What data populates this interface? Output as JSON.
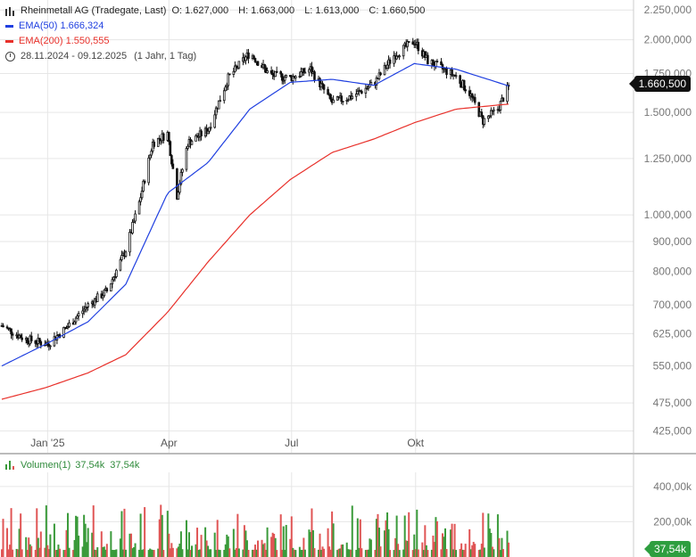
{
  "header": {
    "instrument": "Rheinmetall AG (Tradegate, Last)",
    "ohlc": {
      "o": "O: 1.627,000",
      "h": "H: 1.663,000",
      "l": "L: 1.613,000",
      "c": "C: 1.660,500"
    },
    "ema50": "EMA(50)  1.666,324",
    "ema200": "EMA(200)  1.550,555",
    "range": "28.11.2024 - 09.12.2025",
    "period": "(1 Jahr, 1 Tag)"
  },
  "volume_legend": {
    "label": "Volumen(1)",
    "v1": "37,54k",
    "v2": "37,54k"
  },
  "price_tag": "1.660,500",
  "volume_tag": "37,54k",
  "colors": {
    "up": "#3a9a3a",
    "down": "#e05555",
    "ema50": "#1f3fe0",
    "ema200": "#e8302a",
    "candle": "#111111",
    "grid": "#e6e6e6"
  },
  "chart_data": {
    "type": "candlestick",
    "scale": "log",
    "x_tick_labels": [
      "Jan '25",
      "Apr",
      "Jul",
      "Okt"
    ],
    "y_tick_labels": [
      "2.250,000",
      "2.000,000",
      "1.750,000",
      "1.500,000",
      "1.250,000",
      "1.000,000",
      "900,000",
      "800,000",
      "700,000",
      "625,000",
      "550,000",
      "475,000",
      "425,000"
    ],
    "y_tick_values": [
      2250,
      2000,
      1750,
      1500,
      1250,
      1000,
      900,
      800,
      700,
      625,
      550,
      475,
      425
    ],
    "ylim": [
      390,
      2300
    ],
    "volume_tick_labels": [
      "400,00k",
      "200,00k"
    ],
    "volume_tick_values": [
      400000,
      200000
    ],
    "close_path": [
      [
        "2024-11-28",
        645
      ],
      [
        "2024-12-15",
        612
      ],
      [
        "2025-01-01",
        600
      ],
      [
        "2025-01-15",
        640
      ],
      [
        "2025-01-31",
        700
      ],
      [
        "2025-02-14",
        740
      ],
      [
        "2025-02-28",
        870
      ],
      [
        "2025-03-10",
        1050
      ],
      [
        "2025-03-20",
        1330
      ],
      [
        "2025-03-31",
        1380
      ],
      [
        "2025-04-07",
        1080
      ],
      [
        "2025-04-15",
        1330
      ],
      [
        "2025-04-30",
        1400
      ],
      [
        "2025-05-15",
        1720
      ],
      [
        "2025-05-31",
        1900
      ],
      [
        "2025-06-15",
        1740
      ],
      [
        "2025-06-30",
        1720
      ],
      [
        "2025-07-15",
        1780
      ],
      [
        "2025-07-31",
        1560
      ],
      [
        "2025-08-15",
        1600
      ],
      [
        "2025-08-31",
        1680
      ],
      [
        "2025-09-15",
        1880
      ],
      [
        "2025-09-30",
        1990
      ],
      [
        "2025-10-10",
        1840
      ],
      [
        "2025-10-31",
        1730
      ],
      [
        "2025-11-10",
        1620
      ],
      [
        "2025-11-20",
        1450
      ],
      [
        "2025-12-01",
        1520
      ],
      [
        "2025-12-09",
        1660.5
      ]
    ],
    "ema50_path": [
      [
        "2024-11-28",
        550
      ],
      [
        "2024-12-31",
        600
      ],
      [
        "2025-01-31",
        655
      ],
      [
        "2025-02-28",
        760
      ],
      [
        "2025-03-31",
        1090
      ],
      [
        "2025-04-30",
        1230
      ],
      [
        "2025-05-31",
        1520
      ],
      [
        "2025-06-30",
        1690
      ],
      [
        "2025-07-31",
        1710
      ],
      [
        "2025-08-31",
        1670
      ],
      [
        "2025-09-30",
        1820
      ],
      [
        "2025-10-31",
        1780
      ],
      [
        "2025-12-09",
        1666.324
      ]
    ],
    "ema200_path": [
      [
        "2024-11-28",
        482
      ],
      [
        "2024-12-31",
        505
      ],
      [
        "2025-01-31",
        535
      ],
      [
        "2025-02-28",
        575
      ],
      [
        "2025-03-31",
        680
      ],
      [
        "2025-04-30",
        830
      ],
      [
        "2025-05-31",
        1000
      ],
      [
        "2025-06-30",
        1150
      ],
      [
        "2025-07-31",
        1280
      ],
      [
        "2025-08-31",
        1350
      ],
      [
        "2025-09-30",
        1440
      ],
      [
        "2025-10-31",
        1520
      ],
      [
        "2025-12-09",
        1550.555
      ]
    ]
  }
}
